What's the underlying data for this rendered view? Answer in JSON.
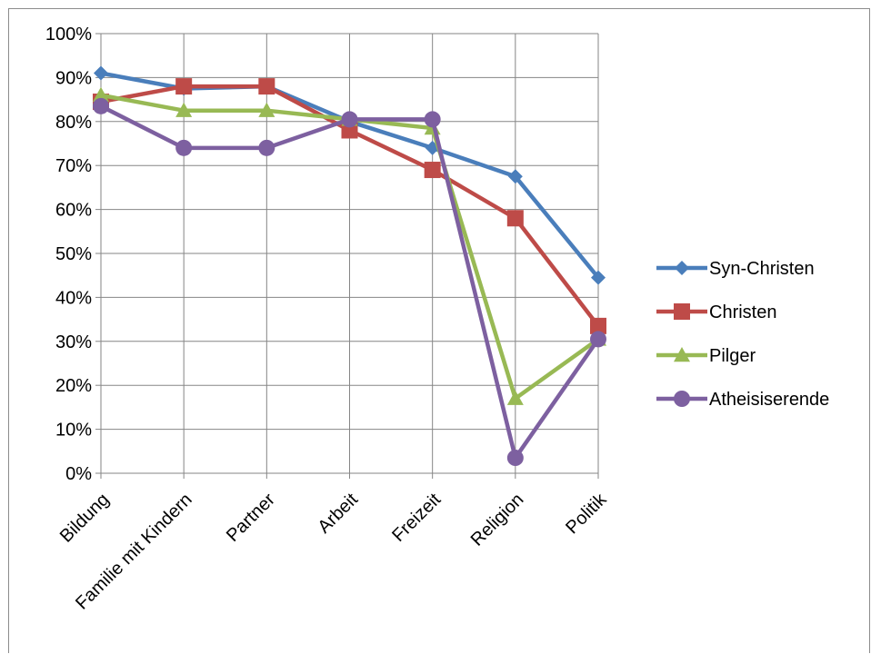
{
  "chart_data": {
    "type": "line",
    "title": "",
    "xlabel": "",
    "ylabel": "",
    "categories": [
      "Bildung",
      "Familie mit Kindern",
      "Partner",
      "Arbeit",
      "Freizeit",
      "Religion",
      "Politik"
    ],
    "ylim": [
      0,
      100
    ],
    "y_ticks": [
      "0%",
      "10%",
      "20%",
      "30%",
      "40%",
      "50%",
      "60%",
      "70%",
      "80%",
      "90%",
      "100%"
    ],
    "y_tick_values": [
      0,
      10,
      20,
      30,
      40,
      50,
      60,
      70,
      80,
      90,
      100
    ],
    "grid": true,
    "legend_position": "right",
    "series": [
      {
        "name": "Syn-Christen",
        "values": [
          91,
          87.5,
          88,
          80,
          74,
          67.5,
          44.5
        ],
        "color": "#4a7ebb",
        "marker": "diamond"
      },
      {
        "name": "Christen",
        "values": [
          84.5,
          88,
          88,
          78,
          69,
          58,
          33.5
        ],
        "color": "#be4b48",
        "marker": "square"
      },
      {
        "name": "Pilger",
        "values": [
          86,
          82.5,
          82.5,
          80.5,
          78.5,
          17,
          30.5
        ],
        "color": "#98b954",
        "marker": "triangle"
      },
      {
        "name": "Atheisiserende",
        "values": [
          83.5,
          74,
          74,
          80.5,
          80.5,
          3.5,
          30.5
        ],
        "color": "#7d60a0",
        "marker": "circle"
      }
    ]
  }
}
